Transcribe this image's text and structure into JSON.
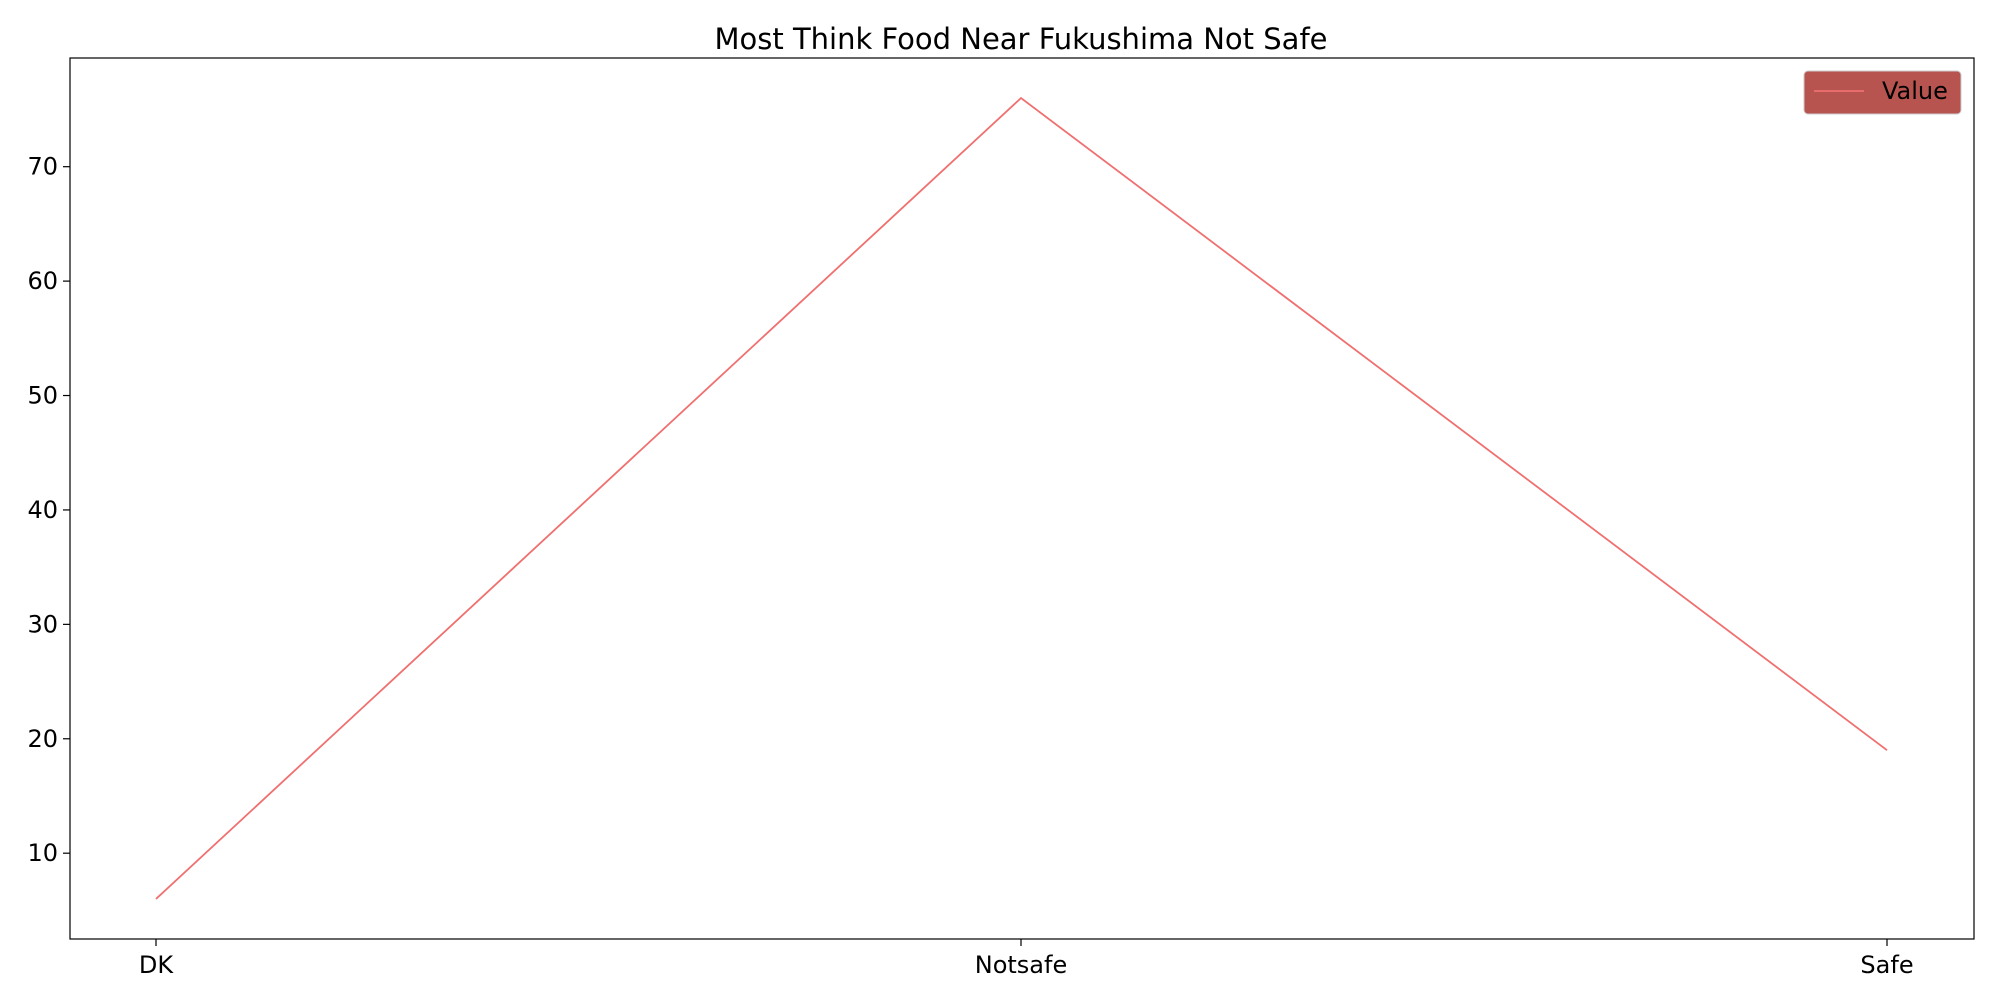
{
  "chart_data": {
    "type": "line",
    "title": "Most Think Food Near Fukushima Not Safe",
    "xlabel": "",
    "ylabel": "",
    "categories": [
      "DK",
      "Notsafe",
      "Safe"
    ],
    "series": [
      {
        "name": "Value",
        "values": [
          6,
          76,
          19
        ],
        "color": "#f07070"
      }
    ],
    "ylim": [
      2.5,
      79.5
    ],
    "yticks": [
      10,
      20,
      30,
      40,
      50,
      60,
      70
    ],
    "grid": false,
    "legend": {
      "position": "top-right",
      "background": "#b85450"
    }
  }
}
